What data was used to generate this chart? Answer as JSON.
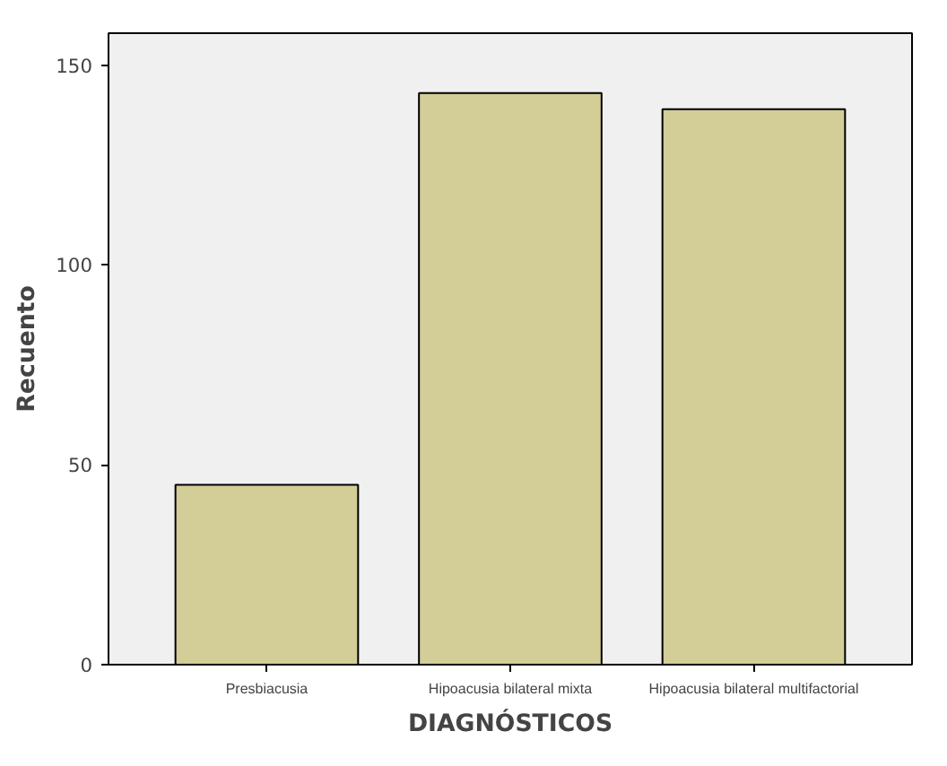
{
  "chart_data": {
    "type": "bar",
    "xlabel": "DIAGNÓSTICOS",
    "ylabel": "Recuento",
    "categories": [
      "Presbiacusia",
      "Hipoacusia bilateral mixta",
      "Hipoacusia bilateral multifactorial"
    ],
    "values": [
      45,
      143,
      139
    ],
    "color": "#d3cd98",
    "ylim": [
      0,
      158
    ],
    "yticks": [
      0,
      50,
      100,
      150
    ],
    "grid": false
  }
}
